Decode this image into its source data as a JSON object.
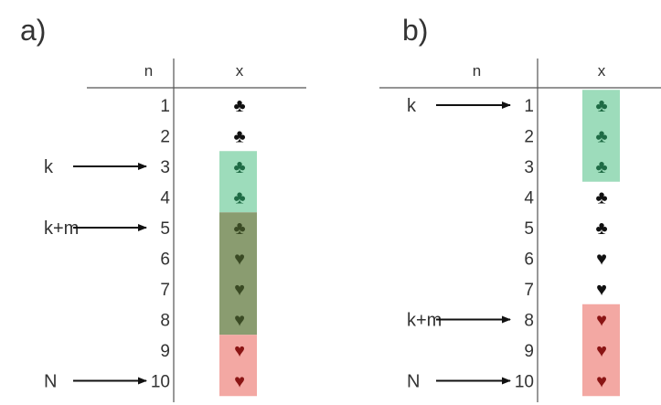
{
  "panels": [
    {
      "label": "a)",
      "headers": {
        "n": "n",
        "x": "x"
      },
      "rows": [
        {
          "n": "1",
          "suit": "club",
          "symbol": "♣"
        },
        {
          "n": "2",
          "suit": "club",
          "symbol": "♣"
        },
        {
          "n": "3",
          "suit": "club",
          "symbol": "♣"
        },
        {
          "n": "4",
          "suit": "club",
          "symbol": "♣"
        },
        {
          "n": "5",
          "suit": "club",
          "symbol": "♣"
        },
        {
          "n": "6",
          "suit": "heart",
          "symbol": "♥"
        },
        {
          "n": "7",
          "suit": "heart",
          "symbol": "♥"
        },
        {
          "n": "8",
          "suit": "heart",
          "symbol": "♥"
        },
        {
          "n": "9",
          "suit": "heart",
          "symbol": "♥"
        },
        {
          "n": "10",
          "suit": "heart",
          "symbol": "♥"
        }
      ],
      "arrows": [
        {
          "label": "k",
          "row": 3
        },
        {
          "label": "k+m",
          "row": 5
        },
        {
          "label": "N",
          "row": 10
        }
      ],
      "highlights": [
        {
          "from": 3,
          "to": 4,
          "color": "#9ddcbb",
          "kind": "green"
        },
        {
          "from": 5,
          "to": 8,
          "color": "#8a9c70",
          "kind": "olive"
        },
        {
          "from": 9,
          "to": 10,
          "color": "#f3a8a3",
          "kind": "red"
        }
      ]
    },
    {
      "label": "b)",
      "headers": {
        "n": "n",
        "x": "x"
      },
      "rows": [
        {
          "n": "1",
          "suit": "club",
          "symbol": "♣"
        },
        {
          "n": "2",
          "suit": "club",
          "symbol": "♣"
        },
        {
          "n": "3",
          "suit": "club",
          "symbol": "♣"
        },
        {
          "n": "4",
          "suit": "club",
          "symbol": "♣"
        },
        {
          "n": "5",
          "suit": "club",
          "symbol": "♣"
        },
        {
          "n": "6",
          "suit": "heart",
          "symbol": "♥"
        },
        {
          "n": "7",
          "suit": "heart",
          "symbol": "♥"
        },
        {
          "n": "8",
          "suit": "heart",
          "symbol": "♥"
        },
        {
          "n": "9",
          "suit": "heart",
          "symbol": "♥"
        },
        {
          "n": "10",
          "suit": "heart",
          "symbol": "♥"
        }
      ],
      "arrows": [
        {
          "label": "k",
          "row": 1
        },
        {
          "label": "k+m",
          "row": 8
        },
        {
          "label": "N",
          "row": 10
        }
      ],
      "highlights": [
        {
          "from": 1,
          "to": 3,
          "color": "#9ddcbb",
          "kind": "green"
        },
        {
          "from": 8,
          "to": 10,
          "color": "#f3a8a3",
          "kind": "red"
        }
      ]
    }
  ],
  "colors": {
    "symbol_default": "#111111",
    "symbol_on_green": "#1f6b45",
    "symbol_on_olive": "#3a4a24",
    "symbol_on_red": "#8a1414",
    "rule_line": "#555555",
    "text": "#333333"
  }
}
